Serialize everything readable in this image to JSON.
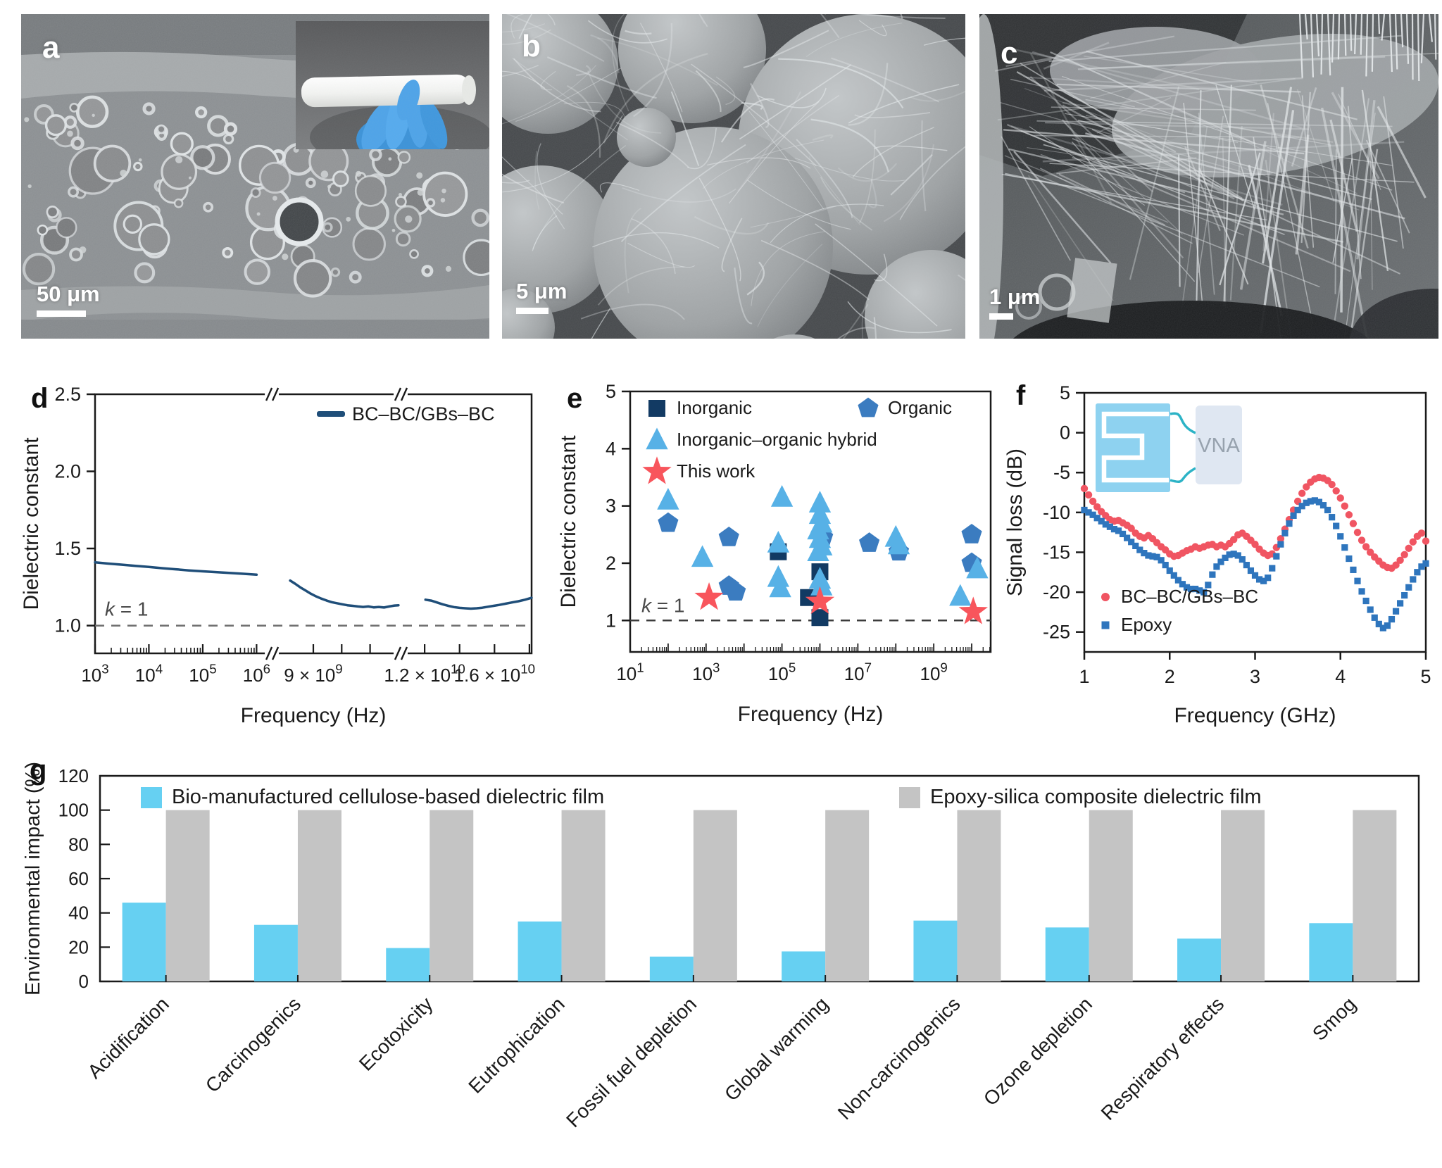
{
  "figure": {
    "panels": {
      "a": {
        "label": "a",
        "scale_bar": "50 μm",
        "image": "sem-cross-section-glass-bubbles",
        "inset_image": "photo-white-film-roll-blue-glove"
      },
      "b": {
        "label": "b",
        "scale_bar": "5 μm",
        "image": "sem-microspheres-nanofiber-web"
      },
      "c": {
        "label": "c",
        "scale_bar": "1 μm",
        "image": "sem-nanofiber-network"
      },
      "d": {
        "label": "d"
      },
      "e": {
        "label": "e"
      },
      "f": {
        "label": "f"
      },
      "g": {
        "label": "g"
      }
    }
  },
  "chart_data": [
    {
      "id": "d",
      "type": "line",
      "xlabel": "Frequency (Hz)",
      "ylabel": "Dielectric constant",
      "ylim": [
        0.82,
        2.5
      ],
      "yticks": [
        1.0,
        1.5,
        2.0,
        2.5
      ],
      "x_axis": {
        "scale": "broken-log",
        "breaks": [
          0.405,
          0.7
        ],
        "major_ticks": [
          {
            "label": "10|3",
            "pos": 0.0
          },
          {
            "label": "10|4",
            "pos": 0.1233
          },
          {
            "label": "10|5",
            "pos": 0.2467
          },
          {
            "label": "10|6",
            "pos": 0.37
          },
          {
            "label": "9 × 10|9",
            "pos": 0.5
          },
          {
            "label": "1.2 × 10|10",
            "pos": 0.755
          },
          {
            "label": "1.6 × 10|10",
            "pos": 0.915
          }
        ],
        "unlabeled_ticks": [
          0.565,
          0.63,
          0.835,
          0.995
        ],
        "log_minor_sections": [
          {
            "start_decade": 3,
            "end_decade": 6,
            "pos_start": 0.0,
            "pos_end": 0.37
          }
        ]
      },
      "reference_line": {
        "value": 1.0,
        "label": "k = 1"
      },
      "legend": [
        {
          "label": "BC–BC/GBs–BC",
          "color": "#1f4e79",
          "marker": "line"
        }
      ],
      "series": [
        {
          "name": "BC–BC/GBs–BC",
          "color": "#1f4e79",
          "segments": [
            [
              [
                0.0,
                1.41
              ],
              [
                0.03,
                1.402
              ],
              [
                0.06,
                1.395
              ],
              [
                0.09,
                1.388
              ],
              [
                0.123,
                1.38
              ],
              [
                0.155,
                1.372
              ],
              [
                0.185,
                1.365
              ],
              [
                0.215,
                1.358
              ],
              [
                0.247,
                1.352
              ],
              [
                0.28,
                1.346
              ],
              [
                0.31,
                1.341
              ],
              [
                0.34,
                1.336
              ],
              [
                0.37,
                1.33
              ]
            ],
            [
              [
                0.447,
                1.292
              ],
              [
                0.458,
                1.272
              ],
              [
                0.47,
                1.248
              ],
              [
                0.482,
                1.228
              ],
              [
                0.494,
                1.207
              ],
              [
                0.506,
                1.19
              ],
              [
                0.518,
                1.175
              ],
              [
                0.53,
                1.163
              ],
              [
                0.542,
                1.152
              ],
              [
                0.554,
                1.145
              ],
              [
                0.566,
                1.138
              ],
              [
                0.578,
                1.132
              ],
              [
                0.59,
                1.128
              ],
              [
                0.602,
                1.124
              ],
              [
                0.614,
                1.121
              ],
              [
                0.626,
                1.124
              ],
              [
                0.638,
                1.118
              ],
              [
                0.65,
                1.121
              ],
              [
                0.662,
                1.117
              ],
              [
                0.674,
                1.124
              ],
              [
                0.686,
                1.13
              ],
              [
                0.695,
                1.132
              ]
            ],
            [
              [
                0.757,
                1.168
              ],
              [
                0.77,
                1.162
              ],
              [
                0.783,
                1.15
              ],
              [
                0.796,
                1.138
              ],
              [
                0.809,
                1.128
              ],
              [
                0.822,
                1.12
              ],
              [
                0.835,
                1.115
              ],
              [
                0.848,
                1.112
              ],
              [
                0.861,
                1.11
              ],
              [
                0.874,
                1.112
              ],
              [
                0.887,
                1.116
              ],
              [
                0.9,
                1.122
              ],
              [
                0.913,
                1.128
              ],
              [
                0.926,
                1.134
              ],
              [
                0.94,
                1.142
              ],
              [
                0.955,
                1.15
              ],
              [
                0.97,
                1.158
              ],
              [
                0.985,
                1.168
              ],
              [
                1.0,
                1.18
              ]
            ]
          ]
        }
      ]
    },
    {
      "id": "e",
      "type": "scatter",
      "xlabel": "Frequency (Hz)",
      "ylabel": "Dielectric constant",
      "ylim": [
        0.45,
        5
      ],
      "yticks": [
        1,
        2,
        3,
        4,
        5
      ],
      "xlog_range": [
        1.0,
        10.5
      ],
      "x_major_ticks": [
        {
          "label": "10|1",
          "exp": 1
        },
        {
          "label": "10|3",
          "exp": 3
        },
        {
          "label": "10|5",
          "exp": 5
        },
        {
          "label": "10|7",
          "exp": 7
        },
        {
          "label": "10|9",
          "exp": 9
        }
      ],
      "reference_line": {
        "value": 1.0,
        "label": "k = 1"
      },
      "series": [
        {
          "name": "Inorganic",
          "marker": "square",
          "color": "#123a63",
          "points": [
            [
              80000.0,
              2.2
            ],
            [
              1000000.0,
              1.85
            ],
            [
              500000.0,
              1.4
            ],
            [
              1000000.0,
              1.05
            ]
          ]
        },
        {
          "name": "Organic",
          "marker": "pentagon",
          "color": "#3b7cc0",
          "points": [
            [
              100.0,
              2.7
            ],
            [
              4000.0,
              2.45
            ],
            [
              4000.0,
              1.6
            ],
            [
              6000.0,
              1.5
            ],
            [
              1200000.0,
              2.45
            ],
            [
              20000000.0,
              2.35
            ],
            [
              120000000.0,
              2.2
            ],
            [
              10000000000.0,
              2.5
            ],
            [
              10000000000.0,
              2.0
            ]
          ]
        },
        {
          "name": "Inorganic–organic hybrid",
          "marker": "triangle",
          "color": "#57b1e6",
          "points": [
            [
              100.0,
              3.1
            ],
            [
              800.0,
              2.1
            ],
            [
              100000.0,
              3.15
            ],
            [
              80000.0,
              2.35
            ],
            [
              80000.0,
              1.75
            ],
            [
              90000.0,
              1.57
            ],
            [
              1000000.0,
              3.05
            ],
            [
              1000000.0,
              2.85
            ],
            [
              1100000.0,
              2.7
            ],
            [
              900000.0,
              2.58
            ],
            [
              1000000.0,
              2.43
            ],
            [
              1100000.0,
              2.3
            ],
            [
              900000.0,
              2.2
            ],
            [
              1000000.0,
              1.72
            ],
            [
              1100000.0,
              1.6
            ],
            [
              100000000.0,
              2.45
            ],
            [
              120000000.0,
              2.32
            ],
            [
              5000000000.0,
              1.42
            ],
            [
              14000000000.0,
              1.9
            ]
          ]
        },
        {
          "name": "This work",
          "marker": "star",
          "color": "#f8555c",
          "points": [
            [
              1200.0,
              1.4
            ],
            [
              1000000.0,
              1.33
            ],
            [
              11000000000.0,
              1.15
            ]
          ]
        }
      ]
    },
    {
      "id": "f",
      "type": "scatter",
      "xlabel": "Frequency (GHz)",
      "ylabel": "Signal loss (dB)",
      "ylim": [
        -27.5,
        5
      ],
      "yticks": [
        5,
        0,
        -5,
        -10,
        -15,
        -20,
        -25
      ],
      "xlim": [
        1,
        5
      ],
      "xticks": [
        1,
        2,
        3,
        4,
        5
      ],
      "inset_label": "VNA",
      "series": [
        {
          "name": "BC–BC/GBs–BC",
          "marker": "circle",
          "color": "#f05562",
          "x_start": 1.0,
          "x_step": 0.05,
          "values": [
            -7.0,
            -7.8,
            -8.6,
            -9.3,
            -9.9,
            -10.4,
            -10.9,
            -11.1,
            -11.0,
            -11.3,
            -11.6,
            -12.0,
            -12.6,
            -13.0,
            -13.2,
            -12.9,
            -13.3,
            -13.8,
            -14.3,
            -14.7,
            -15.2,
            -15.5,
            -15.4,
            -15.1,
            -14.8,
            -14.6,
            -14.3,
            -14.5,
            -14.3,
            -14.1,
            -14.0,
            -14.3,
            -14.1,
            -14.3,
            -13.9,
            -13.4,
            -12.8,
            -12.6,
            -13.0,
            -13.5,
            -14.0,
            -14.6,
            -15.1,
            -15.4,
            -15.2,
            -14.4,
            -13.3,
            -12.1,
            -10.9,
            -9.7,
            -8.6,
            -7.6,
            -6.8,
            -6.2,
            -5.8,
            -5.6,
            -5.7,
            -6.0,
            -6.5,
            -7.3,
            -8.2,
            -9.2,
            -10.3,
            -11.4,
            -12.5,
            -13.5,
            -14.3,
            -15.0,
            -15.6,
            -16.1,
            -16.6,
            -16.9,
            -17.0,
            -16.6,
            -16.0,
            -15.3,
            -14.5,
            -13.7,
            -13.0,
            -12.6,
            -13.6
          ]
        },
        {
          "name": "Epoxy",
          "marker": "square",
          "color": "#2e75bd",
          "x_start": 1.0,
          "x_step": 0.05,
          "values": [
            -9.7,
            -10.0,
            -10.3,
            -10.7,
            -11.1,
            -11.5,
            -11.8,
            -12.1,
            -12.3,
            -12.7,
            -13.2,
            -13.7,
            -14.2,
            -14.7,
            -15.1,
            -15.4,
            -15.5,
            -15.6,
            -16.0,
            -16.6,
            -17.3,
            -17.9,
            -18.5,
            -19.0,
            -19.4,
            -19.6,
            -19.6,
            -19.8,
            -20.0,
            -19.1,
            -17.8,
            -16.8,
            -16.2,
            -15.7,
            -15.3,
            -15.2,
            -15.4,
            -15.9,
            -16.6,
            -17.3,
            -17.9,
            -18.4,
            -18.6,
            -18.2,
            -17.0,
            -15.5,
            -14.0,
            -12.6,
            -11.4,
            -10.4,
            -9.7,
            -9.2,
            -8.8,
            -8.6,
            -8.5,
            -8.7,
            -9.1,
            -9.7,
            -10.6,
            -11.7,
            -13.0,
            -14.4,
            -15.8,
            -17.2,
            -18.6,
            -19.9,
            -21.1,
            -22.2,
            -23.2,
            -24.0,
            -24.5,
            -24.2,
            -23.4,
            -22.4,
            -21.4,
            -20.4,
            -19.4,
            -18.4,
            -17.5,
            -16.8,
            -16.4
          ]
        }
      ]
    },
    {
      "id": "g",
      "type": "bar",
      "ylabel": "Environmental impact (%)",
      "ylim": [
        0,
        120
      ],
      "yticks": [
        0,
        20,
        40,
        60,
        80,
        100,
        120
      ],
      "categories": [
        "Acidification",
        "Carcinogenics",
        "Ecotoxicity",
        "Eutrophication",
        "Fossil fuel depletion",
        "Global warming",
        "Non-carcinogenics",
        "Ozone depletion",
        "Respiratory effects",
        "Smog"
      ],
      "series": [
        {
          "name": "Bio-manufactured cellulose-based dielectric film",
          "color": "#66d0f2",
          "values": [
            46,
            33,
            19.5,
            35,
            14.5,
            17.5,
            35.5,
            31.5,
            25,
            34
          ]
        },
        {
          "name": "Epoxy-silica composite dielectric film",
          "color": "#c4c4c4",
          "values": [
            100,
            100,
            100,
            100,
            100,
            100,
            100,
            100,
            100,
            100
          ]
        }
      ]
    }
  ]
}
